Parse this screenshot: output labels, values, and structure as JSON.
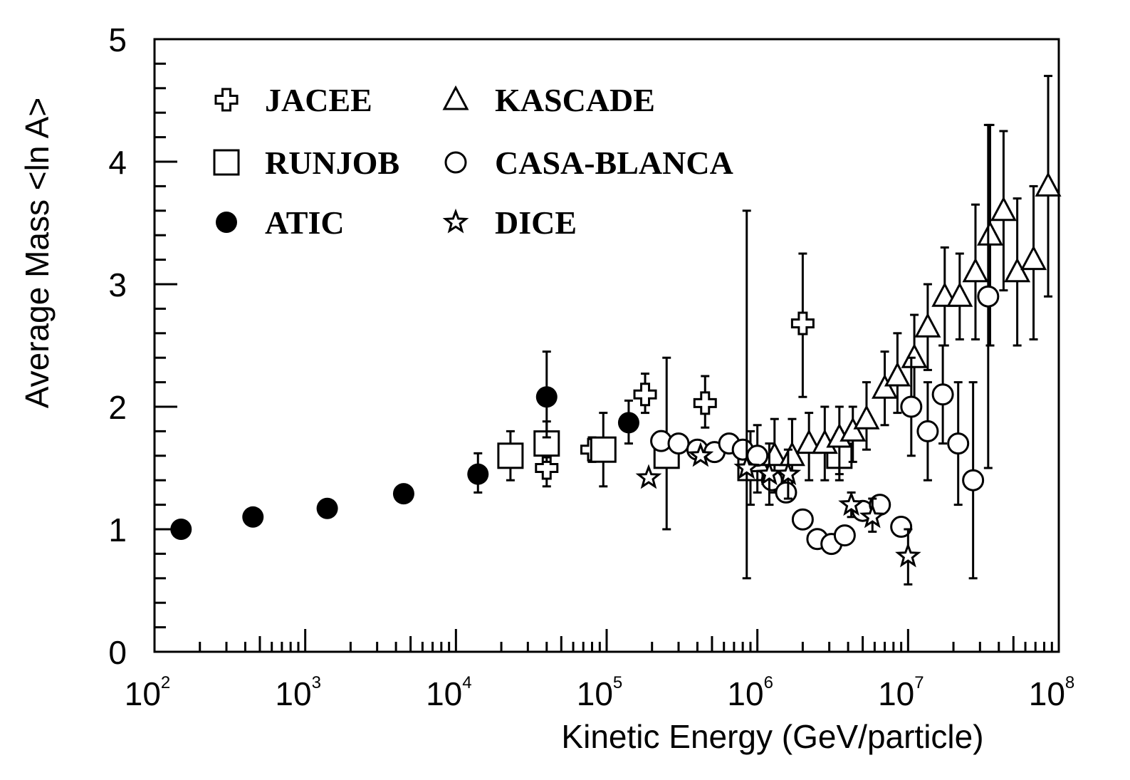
{
  "chart_data": {
    "type": "scatter",
    "xscale": "log",
    "xlim": [
      100,
      100000000
    ],
    "ylim": [
      0,
      5
    ],
    "xlabel": "Kinetic Energy (GeV/particle)",
    "ylabel": "Average Mass <ln A>",
    "yticks": [
      "0",
      "1",
      "2",
      "3",
      "4",
      "5"
    ],
    "xticks": [
      {
        "base": "10",
        "exp": "2"
      },
      {
        "base": "10",
        "exp": "3"
      },
      {
        "base": "10",
        "exp": "4"
      },
      {
        "base": "10",
        "exp": "5"
      },
      {
        "base": "10",
        "exp": "6"
      },
      {
        "base": "10",
        "exp": "7"
      },
      {
        "base": "10",
        "exp": "8"
      }
    ],
    "legend": [
      "JACEE",
      "KASCADE",
      "RUNJOB",
      "CASA-BLANCA",
      "ATIC",
      "DICE"
    ],
    "series": [
      {
        "name": "JACEE",
        "marker": "cross",
        "points": [
          {
            "x": 40000,
            "y": 1.5,
            "lo": 1.35,
            "hi": 1.65
          },
          {
            "x": 80000,
            "y": 1.65,
            "lo": 1.55,
            "hi": 1.75
          },
          {
            "x": 180000,
            "y": 2.1,
            "lo": 1.95,
            "hi": 2.27
          },
          {
            "x": 450000,
            "y": 2.03,
            "lo": 1.83,
            "hi": 2.25
          },
          {
            "x": 2000000,
            "y": 2.68,
            "lo": 2.08,
            "hi": 3.25
          }
        ]
      },
      {
        "name": "RUNJOB",
        "marker": "square",
        "points": [
          {
            "x": 23000,
            "y": 1.6,
            "lo": 1.4,
            "hi": 1.8
          },
          {
            "x": 40000,
            "y": 1.7,
            "lo": 1.55,
            "hi": 1.88
          },
          {
            "x": 95000,
            "y": 1.65,
            "lo": 1.35,
            "hi": 1.95
          },
          {
            "x": 250000,
            "y": 1.6,
            "lo": 1.0,
            "hi": 2.4
          },
          {
            "x": 900000,
            "y": 1.5,
            "lo": 1.2,
            "hi": 1.8
          },
          {
            "x": 3500000,
            "y": 1.6,
            "lo": 1.4,
            "hi": 1.8
          }
        ]
      },
      {
        "name": "ATIC",
        "marker": "dot",
        "points": [
          {
            "x": 150,
            "y": 1.0
          },
          {
            "x": 450,
            "y": 1.1
          },
          {
            "x": 1400,
            "y": 1.17
          },
          {
            "x": 4500,
            "y": 1.29
          },
          {
            "x": 14000,
            "y": 1.45,
            "lo": 1.3,
            "hi": 1.62
          },
          {
            "x": 40000,
            "y": 2.08,
            "lo": 1.75,
            "hi": 2.45
          },
          {
            "x": 140000,
            "y": 1.87,
            "lo": 1.7,
            "hi": 2.05
          }
        ]
      },
      {
        "name": "KASCADE",
        "marker": "triangle",
        "points": [
          {
            "x": 1000000,
            "y": 1.55,
            "lo": 1.3,
            "hi": 1.85
          },
          {
            "x": 1300000,
            "y": 1.6,
            "lo": 1.3,
            "hi": 1.9
          },
          {
            "x": 1700000,
            "y": 1.6,
            "lo": 1.3,
            "hi": 1.9
          },
          {
            "x": 2200000,
            "y": 1.7,
            "lo": 1.4,
            "hi": 1.95
          },
          {
            "x": 2800000,
            "y": 1.7,
            "lo": 1.4,
            "hi": 2.0
          },
          {
            "x": 3500000,
            "y": 1.75,
            "lo": 1.45,
            "hi": 2.0
          },
          {
            "x": 4300000,
            "y": 1.8,
            "lo": 1.55,
            "hi": 2.0
          },
          {
            "x": 5300000,
            "y": 1.9,
            "lo": 1.65,
            "hi": 2.2
          },
          {
            "x": 7000000,
            "y": 2.15,
            "lo": 1.85,
            "hi": 2.45
          },
          {
            "x": 8500000,
            "y": 2.25,
            "lo": 1.95,
            "hi": 2.6
          },
          {
            "x": 11000000,
            "y": 2.4,
            "lo": 2.05,
            "hi": 2.75
          },
          {
            "x": 13500000,
            "y": 2.65,
            "lo": 2.3,
            "hi": 3.0
          },
          {
            "x": 17500000,
            "y": 2.9,
            "lo": 2.5,
            "hi": 3.3
          },
          {
            "x": 22000000,
            "y": 2.9,
            "lo": 2.55,
            "hi": 3.25
          },
          {
            "x": 28000000,
            "y": 3.1,
            "lo": 2.55,
            "hi": 3.65
          },
          {
            "x": 35000000,
            "y": 3.4,
            "lo": 2.5,
            "hi": 4.3
          },
          {
            "x": 43000000,
            "y": 3.6,
            "lo": 2.95,
            "hi": 4.25
          },
          {
            "x": 53000000,
            "y": 3.1,
            "lo": 2.5,
            "hi": 3.7
          },
          {
            "x": 68000000,
            "y": 3.2,
            "lo": 2.55,
            "hi": 3.8
          },
          {
            "x": 85000000,
            "y": 3.8,
            "lo": 2.9,
            "hi": 4.7
          }
        ]
      },
      {
        "name": "CASA-BLANCA",
        "marker": "circle",
        "points": [
          {
            "x": 230000,
            "y": 1.72
          },
          {
            "x": 300000,
            "y": 1.7
          },
          {
            "x": 400000,
            "y": 1.65
          },
          {
            "x": 520000,
            "y": 1.63
          },
          {
            "x": 650000,
            "y": 1.7
          },
          {
            "x": 800000,
            "y": 1.65
          },
          {
            "x": 1000000,
            "y": 1.6
          },
          {
            "x": 1250000,
            "y": 1.4
          },
          {
            "x": 1550000,
            "y": 1.3
          },
          {
            "x": 2000000,
            "y": 1.08
          },
          {
            "x": 2500000,
            "y": 0.92
          },
          {
            "x": 3100000,
            "y": 0.88
          },
          {
            "x": 3800000,
            "y": 0.95
          },
          {
            "x": 5000000,
            "y": 1.15
          },
          {
            "x": 6500000,
            "y": 1.2
          },
          {
            "x": 9000000,
            "y": 1.02
          },
          {
            "x": 10500000,
            "y": 2.0,
            "lo": 1.6,
            "hi": 2.4
          },
          {
            "x": 13500000,
            "y": 1.8,
            "lo": 1.4,
            "hi": 2.2
          },
          {
            "x": 17000000,
            "y": 2.1,
            "lo": 1.7,
            "hi": 2.5
          },
          {
            "x": 21500000,
            "y": 1.7,
            "lo": 1.2,
            "hi": 2.2
          },
          {
            "x": 27000000,
            "y": 1.4,
            "lo": 0.6,
            "hi": 2.2
          },
          {
            "x": 34000000,
            "y": 2.9,
            "lo": 1.5,
            "hi": 4.3
          }
        ]
      },
      {
        "name": "DICE",
        "marker": "star",
        "points": [
          {
            "x": 190000,
            "y": 1.42
          },
          {
            "x": 420000,
            "y": 1.6
          },
          {
            "x": 850000,
            "y": 1.5,
            "lo": 0.6,
            "hi": 3.6
          },
          {
            "x": 1200000,
            "y": 1.45,
            "lo": 1.2,
            "hi": 1.7
          },
          {
            "x": 1600000,
            "y": 1.45,
            "lo": 1.25,
            "hi": 1.65
          },
          {
            "x": 4200000,
            "y": 1.2,
            "lo": 1.1,
            "hi": 1.3
          },
          {
            "x": 5800000,
            "y": 1.1,
            "lo": 0.98,
            "hi": 1.25
          },
          {
            "x": 10000000,
            "y": 0.78,
            "lo": 0.55,
            "hi": 1.0
          }
        ]
      }
    ]
  }
}
